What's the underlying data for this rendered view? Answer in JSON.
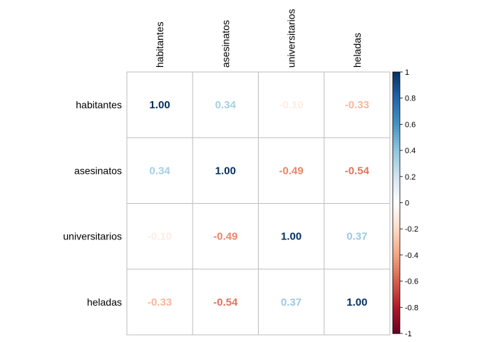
{
  "chart_data": {
    "type": "heatmap",
    "variables": [
      "habitantes",
      "asesinatos",
      "universitarios",
      "heladas"
    ],
    "matrix": [
      [
        1.0,
        0.34,
        -0.1,
        -0.33
      ],
      [
        0.34,
        1.0,
        -0.49,
        -0.54
      ],
      [
        -0.1,
        -0.49,
        1.0,
        0.37
      ],
      [
        -0.33,
        -0.54,
        0.37,
        1.0
      ]
    ],
    "cell_labels": [
      [
        "1.00",
        "0.34",
        "-0.10",
        "-0.33"
      ],
      [
        "0.34",
        "1.00",
        "-0.49",
        "-0.54"
      ],
      [
        "-0.10",
        "-0.49",
        "1.00",
        "0.37"
      ],
      [
        "-0.33",
        "-0.54",
        "0.37",
        "1.00"
      ]
    ],
    "colorbar": {
      "range": [
        -1,
        1
      ],
      "ticks": [
        "1",
        "0.8",
        "0.6",
        "0.4",
        "0.2",
        "0",
        "-0.2",
        "-0.4",
        "-0.6",
        "-0.8",
        "-1"
      ]
    },
    "colorscale": [
      "#67001F",
      "#B2182B",
      "#D6604D",
      "#F4A582",
      "#FDDBC7",
      "#FFFFFF",
      "#D1E5F0",
      "#92C5DE",
      "#4393C3",
      "#2166AC",
      "#053061"
    ],
    "grid": true
  }
}
